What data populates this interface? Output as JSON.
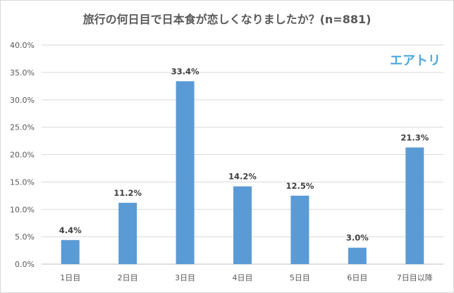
{
  "brand": {
    "logo_text": "エアトリ",
    "color": "#4fa8dc"
  },
  "chart_data": {
    "type": "bar",
    "title": "旅行の何日目で日本食が恋しくなりましたか？(n=881)",
    "categories": [
      "1日目",
      "2日目",
      "3日目",
      "4日目",
      "5日目",
      "6日目",
      "7日目以降"
    ],
    "values": [
      4.4,
      11.2,
      33.4,
      14.2,
      12.5,
      3.0,
      21.3
    ],
    "data_labels": [
      "4.4%",
      "11.2%",
      "33.4%",
      "14.2%",
      "12.5%",
      "3.0%",
      "21.3%"
    ],
    "y_ticks": [
      0,
      5,
      10,
      15,
      20,
      25,
      30,
      35,
      40
    ],
    "y_tick_labels": [
      "0.0%",
      "5.0%",
      "10.0%",
      "15.0%",
      "20.0%",
      "25.0%",
      "30.0%",
      "35.0%",
      "40.0%"
    ],
    "ylim": [
      0,
      40
    ],
    "xlabel": "",
    "ylabel": "",
    "grid": true,
    "legend": "none",
    "bar_color": "#5b9bd5"
  }
}
